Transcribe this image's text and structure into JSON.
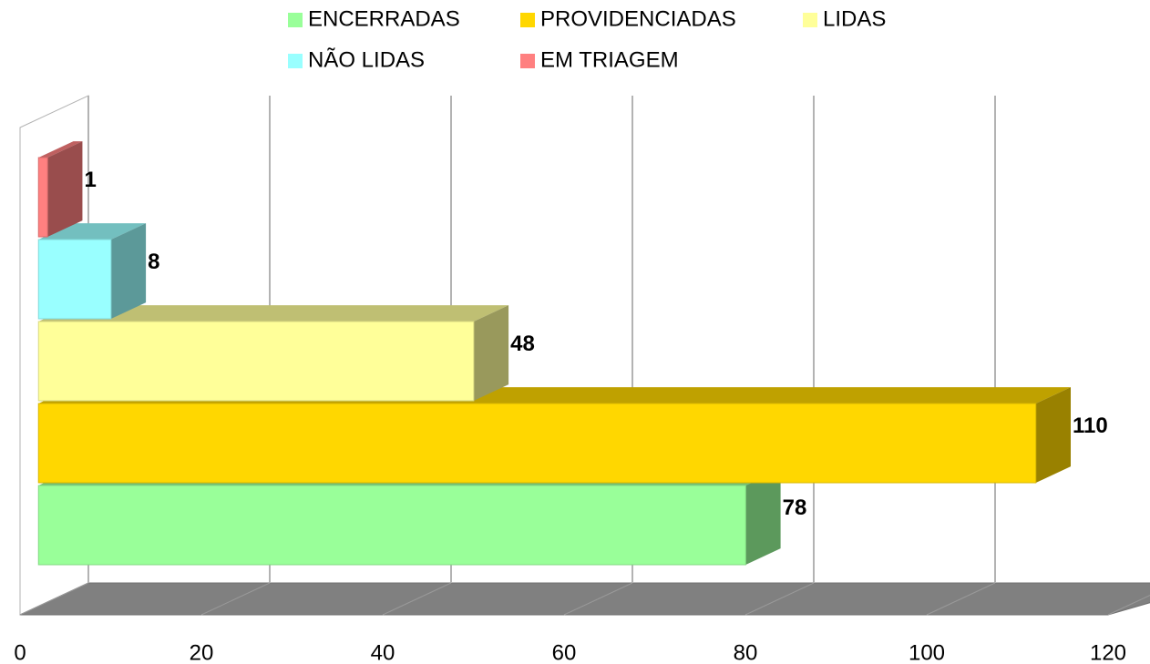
{
  "chart_data": {
    "type": "bar3d_horizontal",
    "series": [
      {
        "name": "ENCERRADAS",
        "color": "#99ff99",
        "values": [
          78
        ]
      },
      {
        "name": "PROVIDENCIADAS",
        "color": "#ffd700",
        "values": [
          110
        ]
      },
      {
        "name": "LIDAS",
        "color": "#ffff99",
        "values": [
          48
        ]
      },
      {
        "name": "NÃO LIDAS",
        "color": "#99ffff",
        "values": [
          8
        ]
      },
      {
        "name": "EM TRIAGEM",
        "color": "#ff8080",
        "values": [
          1
        ]
      }
    ],
    "xlim": [
      0,
      120
    ],
    "xticks": [
      0,
      20,
      40,
      60,
      80,
      100,
      120
    ],
    "grid": true,
    "legend": "top"
  }
}
